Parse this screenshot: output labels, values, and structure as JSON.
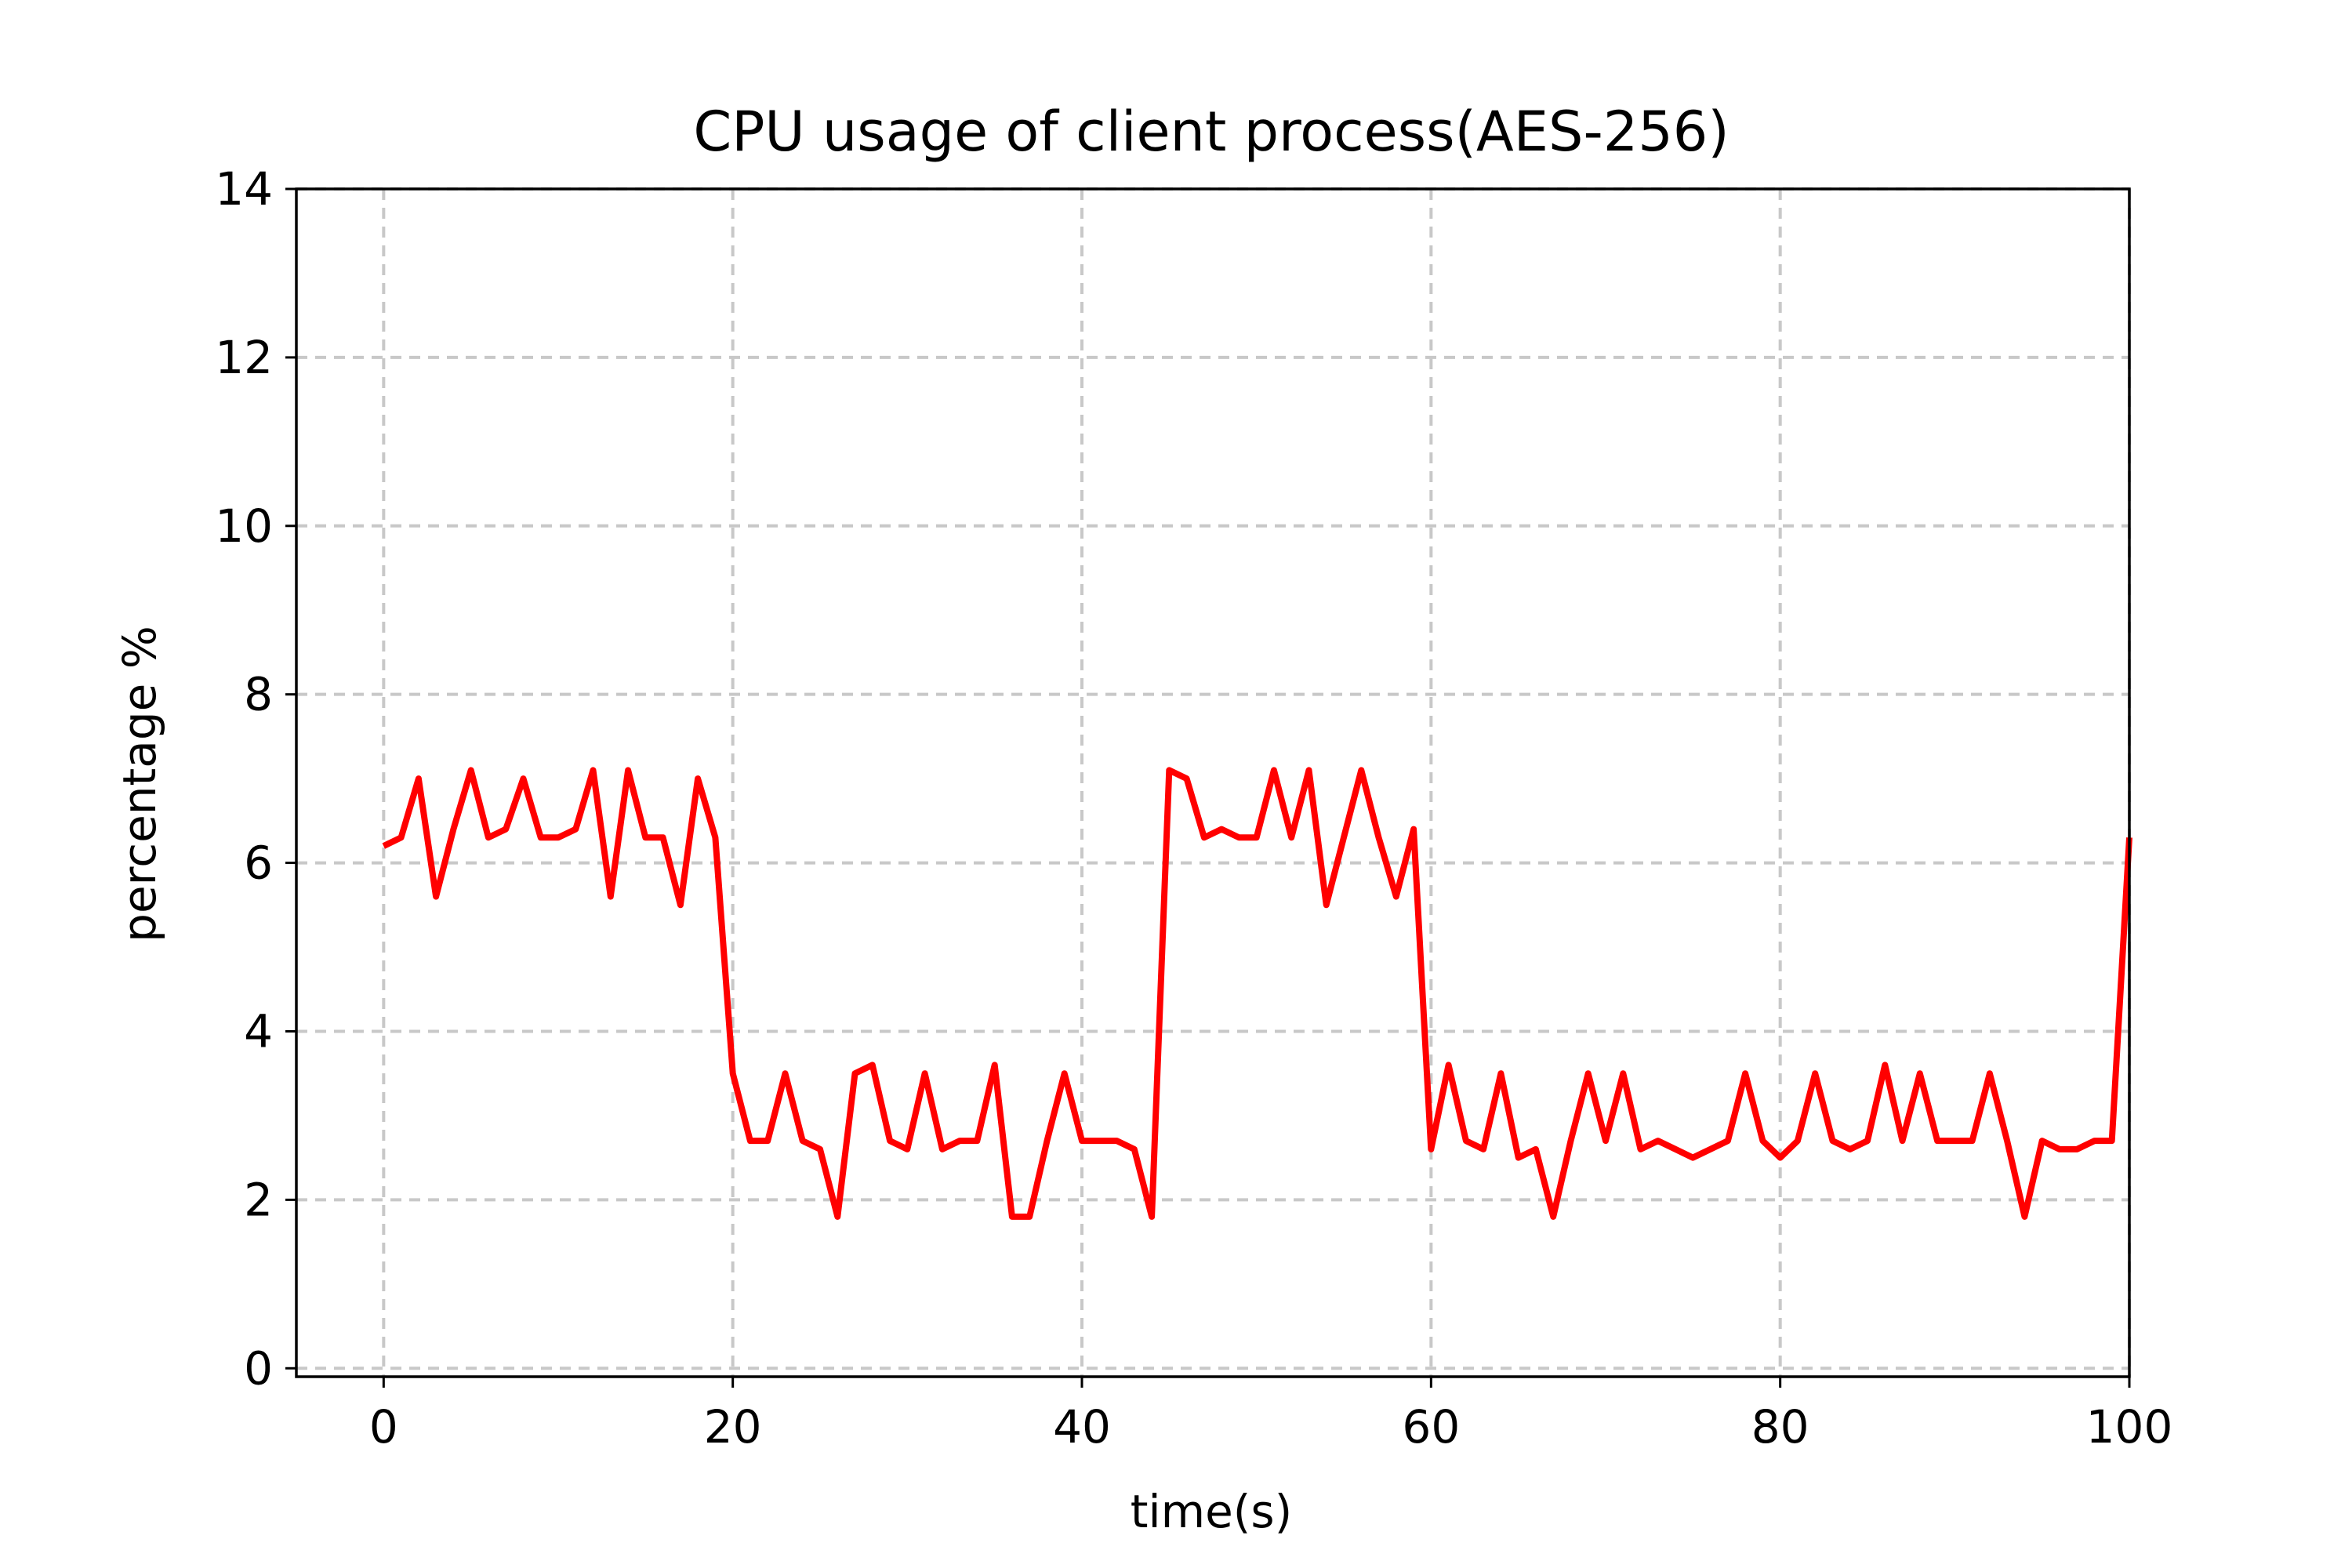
{
  "chart_data": {
    "type": "line",
    "title": "CPU usage of client process(AES-256)",
    "xlabel": "time(s)",
    "ylabel": "percentage %",
    "xlim": [
      -5,
      100
    ],
    "ylim": [
      -0.1,
      14
    ],
    "xticks": [
      0,
      20,
      40,
      60,
      80,
      100
    ],
    "yticks": [
      0,
      2,
      4,
      6,
      8,
      10,
      12,
      14
    ],
    "xtick_labels": [
      "0",
      "20",
      "40",
      "60",
      "80",
      "100"
    ],
    "ytick_labels": [
      "0",
      "2",
      "4",
      "6",
      "8",
      "10",
      "12",
      "14"
    ],
    "grid": true,
    "series": [
      {
        "color": "#ff0000",
        "x": [
          0,
          1,
          2,
          3,
          4,
          5,
          6,
          7,
          8,
          9,
          10,
          11,
          12,
          13,
          14,
          15,
          16,
          17,
          18,
          19,
          20,
          21,
          22,
          23,
          24,
          25,
          26,
          27,
          28,
          29,
          30,
          31,
          32,
          33,
          34,
          35,
          36,
          37,
          38,
          39,
          40,
          41,
          42,
          43,
          44,
          45,
          46,
          47,
          48,
          49,
          50,
          51,
          52,
          53,
          54,
          55,
          56,
          57,
          58,
          59,
          60,
          61,
          62,
          63,
          64,
          65,
          66,
          67,
          68,
          69,
          70,
          71,
          72,
          73,
          74,
          75,
          76,
          77,
          78,
          79,
          80,
          81,
          82,
          83,
          84,
          85,
          86,
          87,
          88,
          89,
          90,
          91,
          92,
          93,
          94,
          95,
          96,
          97,
          98,
          99,
          100
        ],
        "y": [
          6.2,
          6.3,
          7.0,
          5.6,
          6.4,
          7.1,
          6.3,
          6.4,
          7.0,
          6.3,
          6.3,
          6.4,
          7.1,
          5.6,
          7.1,
          6.3,
          6.3,
          5.5,
          7.0,
          6.3,
          3.5,
          2.7,
          2.7,
          3.5,
          2.7,
          2.6,
          1.8,
          3.5,
          3.6,
          2.7,
          2.6,
          3.5,
          2.6,
          2.7,
          2.7,
          3.6,
          1.8,
          1.8,
          2.7,
          3.5,
          2.7,
          2.7,
          2.7,
          2.6,
          1.8,
          7.1,
          7.0,
          6.3,
          6.4,
          6.3,
          6.3,
          7.1,
          6.3,
          7.1,
          5.5,
          6.3,
          7.1,
          6.3,
          5.6,
          6.4,
          2.6,
          3.6,
          2.7,
          2.6,
          3.5,
          2.5,
          2.6,
          1.8,
          2.7,
          3.5,
          2.7,
          3.5,
          2.6,
          2.7,
          2.6,
          2.5,
          2.6,
          2.7,
          3.5,
          2.7,
          2.5,
          2.7,
          3.5,
          2.7,
          2.6,
          2.7,
          3.6,
          2.7,
          3.5,
          2.7,
          2.7,
          2.7,
          3.5,
          2.7,
          1.8,
          2.7,
          2.6,
          2.6,
          2.7,
          2.7,
          6.3
        ]
      }
    ]
  }
}
